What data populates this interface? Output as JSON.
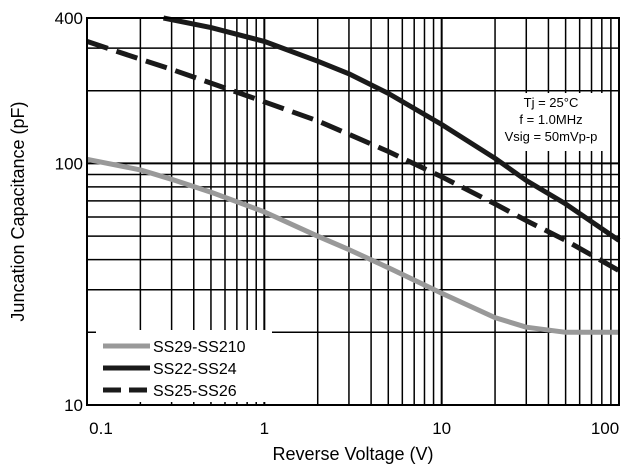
{
  "chart_data": {
    "type": "line",
    "xlabel": "Reverse Voltage (V)",
    "ylabel": "Juncation Capacitance (pF)",
    "x_scale": "log",
    "y_scale": "log",
    "xlim": [
      0.1,
      100
    ],
    "ylim": [
      10,
      400
    ],
    "grid": true,
    "x_ticks": [
      {
        "value": 0.1,
        "label": "0.1"
      },
      {
        "value": 1,
        "label": "1"
      },
      {
        "value": 10,
        "label": "10"
      },
      {
        "value": 100,
        "label": "100"
      }
    ],
    "y_ticks": [
      {
        "value": 10,
        "label": "10"
      },
      {
        "value": 100,
        "label": "100"
      },
      {
        "value": 400,
        "label": "400"
      }
    ],
    "annotation": {
      "lines": [
        "Tj = 25°C",
        "f = 1.0MHz",
        "Vsig = 50mVp-p"
      ]
    },
    "legend_position": "bottom-left",
    "series": [
      {
        "name": "SS29-SS210",
        "color": "#999999",
        "style": "solid",
        "x": [
          0.1,
          0.2,
          0.3,
          0.5,
          1,
          2,
          3,
          5,
          10,
          20,
          30,
          50,
          100
        ],
        "y": [
          104,
          94,
          86,
          76,
          63,
          50,
          44,
          37,
          29,
          23,
          21,
          20,
          20
        ]
      },
      {
        "name": "SS22-SS24",
        "color": "#1a1a1a",
        "style": "solid",
        "x": [
          0.27,
          0.5,
          1,
          2,
          3,
          5,
          10,
          20,
          30,
          50,
          100
        ],
        "y": [
          400,
          365,
          320,
          265,
          235,
          195,
          145,
          105,
          85,
          68,
          48
        ]
      },
      {
        "name": "SS25-SS26",
        "color": "#1a1a1a",
        "style": "dashed",
        "x": [
          0.1,
          0.2,
          0.3,
          0.5,
          1,
          2,
          3,
          5,
          10,
          20,
          30,
          50,
          100
        ],
        "y": [
          320,
          270,
          245,
          215,
          180,
          150,
          132,
          112,
          88,
          68,
          58,
          48,
          36
        ]
      }
    ]
  }
}
